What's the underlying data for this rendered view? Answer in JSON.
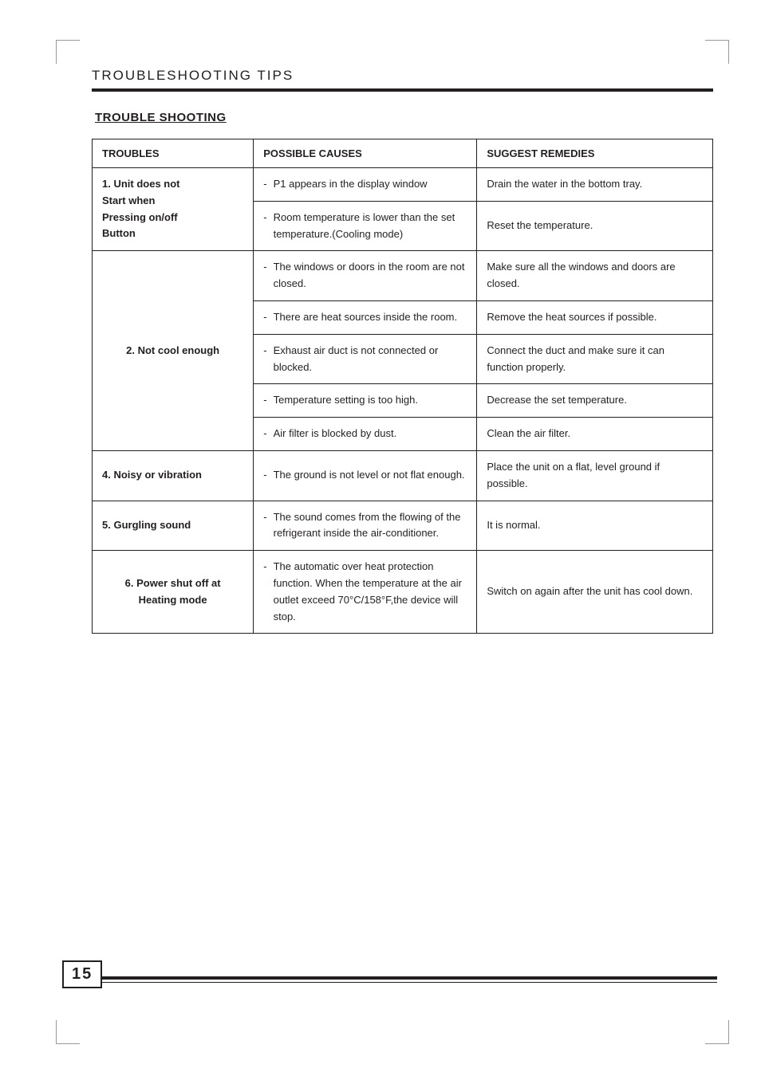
{
  "page": {
    "section_title": "TROUBLESHOOTING TIPS",
    "subsection_title": "TROUBLE SHOOTING",
    "page_number": "15"
  },
  "table": {
    "headers": {
      "troubles": "TROUBLES",
      "causes": "POSSIBLE CAUSES",
      "remedies": "SUGGEST REMEDIES"
    },
    "rows": [
      {
        "trouble": "1. Unit does not\nStart when\nPressing on/off\nButton",
        "trouble_align": "left",
        "rowspan": 2,
        "cause": "P1 appears in the display window",
        "remedy": "Drain  the water in the bottom tray."
      },
      {
        "cause": "Room temperature is lower than the set temperature.(Cooling mode)",
        "remedy": "Reset the temperature."
      },
      {
        "trouble": "2. Not cool enough",
        "trouble_align": "center",
        "rowspan": 5,
        "cause": "The windows or doors in the room are not closed.",
        "remedy": "Make sure all the windows and doors are closed."
      },
      {
        "cause": "There are heat sources inside the room.",
        "remedy": "Remove the heat sources if possible."
      },
      {
        "cause": "Exhaust air duct is not connected or blocked.",
        "remedy": "Connect the duct and make sure it can function properly."
      },
      {
        "cause": "Temperature setting is too high.",
        "remedy": "Decrease the set temperature."
      },
      {
        "cause": "Air filter is blocked by dust.",
        "remedy": "Clean the air filter."
      },
      {
        "trouble": "4. Noisy or vibration",
        "trouble_align": "left",
        "rowspan": 1,
        "cause": "The ground is not level or not flat enough.",
        "remedy": "Place the unit on a flat, level ground if possible."
      },
      {
        "trouble": "5. Gurgling  sound",
        "trouble_align": "left",
        "rowspan": 1,
        "cause": "The sound comes from the flowing of the refrigerant inside the air-conditioner.",
        "remedy": "It is normal."
      },
      {
        "trouble": "6. Power shut off at\nHeating mode",
        "trouble_align": "center",
        "rowspan": 1,
        "cause": "The automatic over heat protection function. When the temperature at the air outlet exceed 70°C/158°F,the device will stop.",
        "remedy": "Switch on again after the unit has cool down."
      }
    ]
  }
}
